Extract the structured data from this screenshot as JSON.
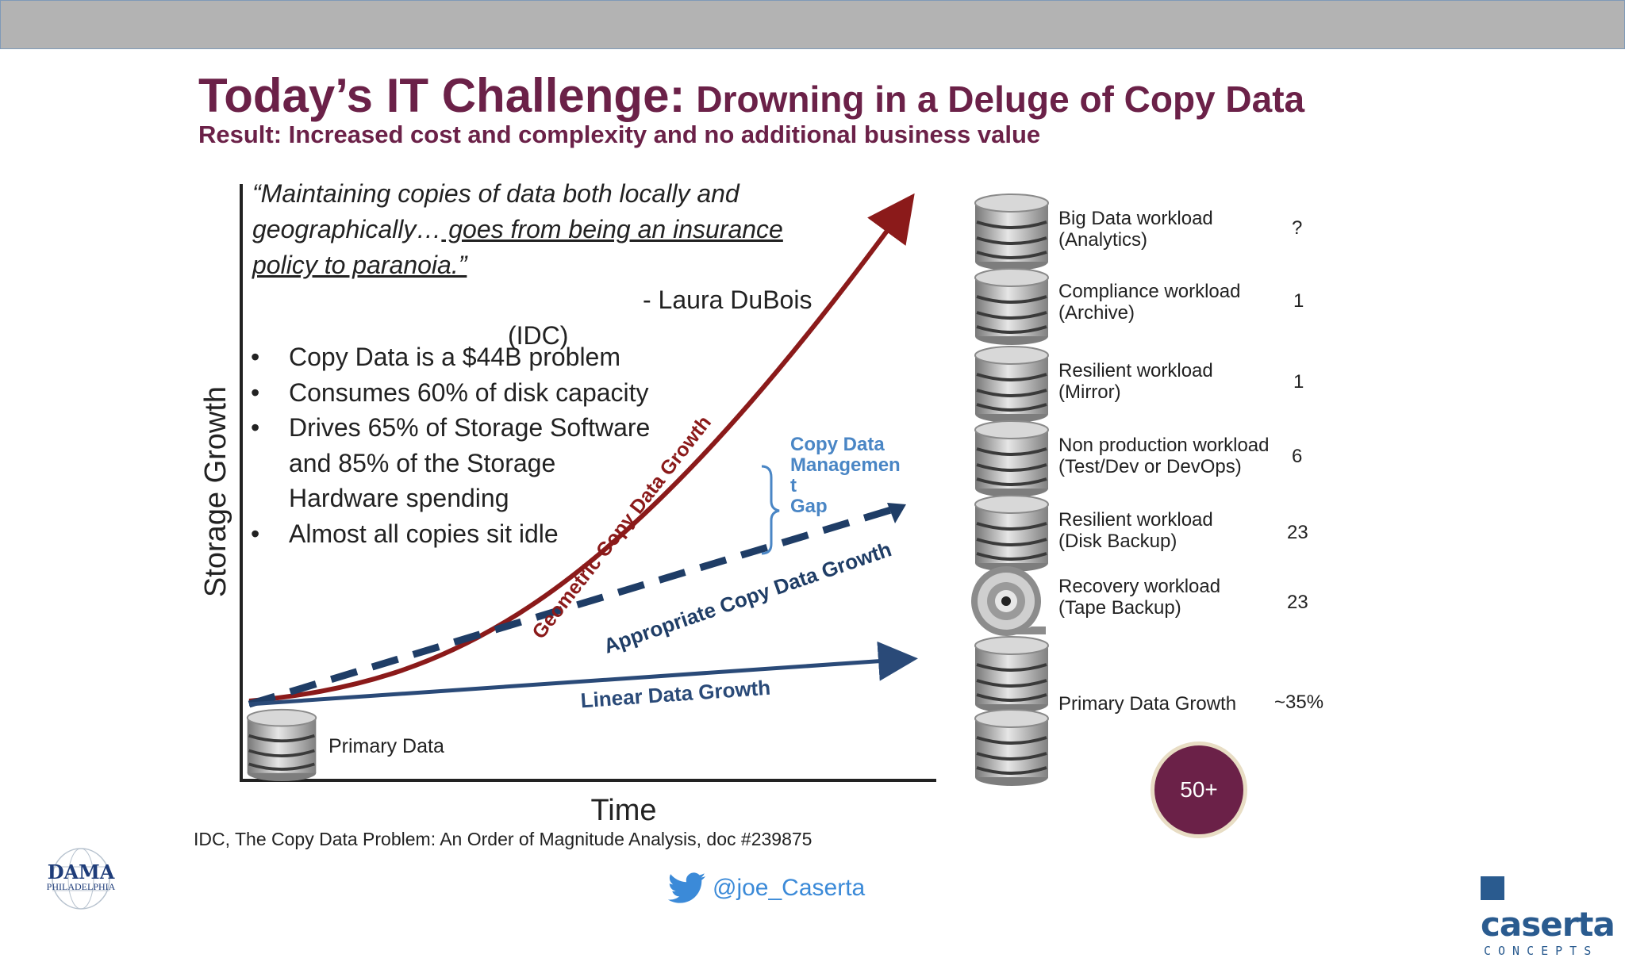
{
  "slide": {
    "title_main": "Today’s IT Challenge:",
    "title_rest": "Drowning in a Deluge of Copy Data",
    "subtitle": "Result: Increased cost and complexity and no additional business value",
    "quote_line1": "“Maintaining copies of data both locally and",
    "quote_line2a": "geographically…",
    "quote_line2b": " goes from being an insurance",
    "quote_line3": "policy to paranoia.”",
    "quote_author": "- Laura DuBois",
    "quote_org": "(IDC)",
    "bullets": [
      "Copy Data is a $44B problem",
      "Consumes 60% of disk capacity",
      "Drives 65% of Storage Software",
      "and 85% of the Storage",
      "Hardware spending",
      "Almost all copies sit idle"
    ],
    "bullet_char": "•",
    "source": "IDC, The Copy Data Problem: An Order of Magnitude Analysis, doc #239875",
    "twitter_handle": "@joe_Caserta",
    "twitter_icon": "twitter-bird-icon",
    "left_logo": {
      "name": "DAMA",
      "sub": "PHILADELPHIA"
    },
    "right_logo": {
      "name": "caserta",
      "sub": "CONCEPTS"
    },
    "colors": {
      "title": "#6b2148",
      "geometric": "#8b1a1a",
      "appropriate": "#1f3d66",
      "linear": "#2a4a78",
      "cdm_gap": "#4a86c5",
      "badge": "#6b2148"
    }
  },
  "chart_data": {
    "type": "line",
    "xlabel": "Time",
    "ylabel": "Storage Growth",
    "origin_label": "Primary Data",
    "series": [
      {
        "name": "Geometric Copy Data Growth",
        "style": "solid-curve",
        "trend": "exponential"
      },
      {
        "name": "Appropriate Copy Data Growth",
        "style": "dashed",
        "trend": "linear-steep"
      },
      {
        "name": "Linear Data Growth",
        "style": "solid",
        "trend": "linear-shallow"
      }
    ],
    "annotation": {
      "text_lines": [
        "Copy Data",
        "Managemen",
        "t",
        "Gap"
      ]
    }
  },
  "workloads": [
    {
      "line1": "Big Data workload",
      "line2": "(Analytics)",
      "value": "?",
      "icon": "database-icon"
    },
    {
      "line1": "Compliance workload",
      "line2": "(Archive)",
      "value": "1",
      "icon": "database-icon"
    },
    {
      "line1": "Resilient workload",
      "line2": "(Mirror)",
      "value": "1",
      "icon": "database-icon"
    },
    {
      "line1": "Non production workload",
      "line2": "(Test/Dev or DevOps)",
      "value": "6",
      "icon": "database-icon"
    },
    {
      "line1": "Resilient workload",
      "line2": "(Disk Backup)",
      "value": "23",
      "icon": "database-icon"
    },
    {
      "line1": "Recovery workload",
      "line2": "(Tape Backup)",
      "value": "23",
      "icon": "tape-reel-icon"
    },
    {
      "line1": "Primary Data Growth",
      "line2": "",
      "value": "~35%",
      "icon": "database-icon"
    }
  ],
  "total_badge": "50+"
}
